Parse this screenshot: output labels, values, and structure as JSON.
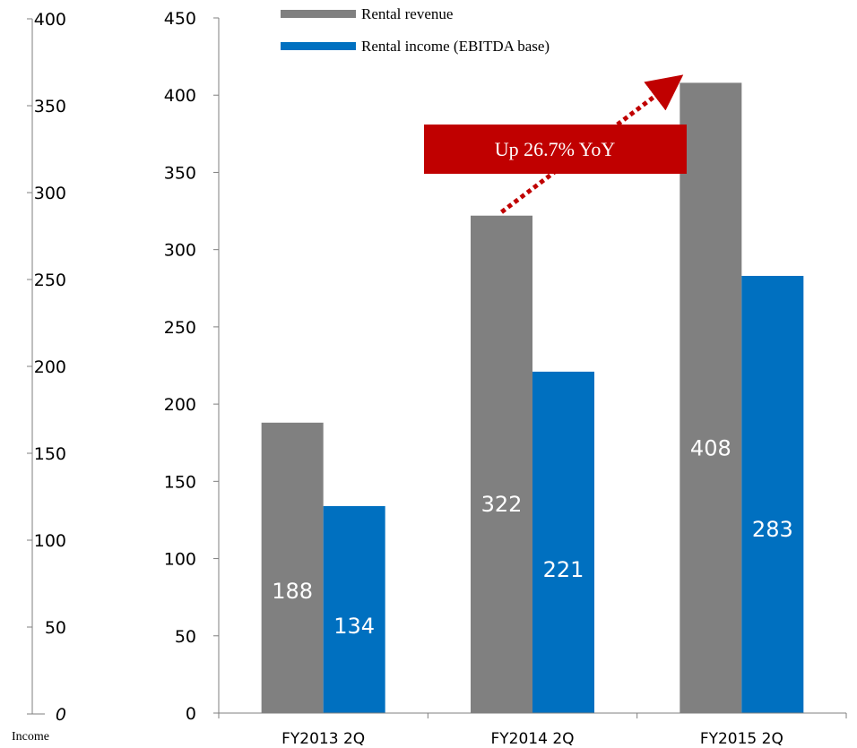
{
  "chart_data": {
    "type": "bar",
    "categories": [
      "FY2013 2Q",
      "FY2014 2Q",
      "FY2015 2Q"
    ],
    "series": [
      {
        "name": "Rental revenue",
        "values": [
          188,
          322,
          408
        ],
        "color": "#808080"
      },
      {
        "name": "Rental income (EBITDA base)",
        "values": [
          134,
          221,
          283
        ],
        "color": "#0070c0"
      }
    ],
    "ylim": [
      0,
      450
    ],
    "yticks": [
      0,
      50,
      100,
      150,
      200,
      250,
      300,
      350,
      400,
      450
    ],
    "secondary_axis": {
      "label": "Income",
      "ylim": [
        0,
        400
      ],
      "yticks": [
        0,
        50,
        100,
        150,
        200,
        250,
        300,
        350,
        400
      ]
    },
    "annotation": {
      "text": "Up 26.7% YoY",
      "color": "#c00000",
      "from": {
        "category": "FY2014 2Q",
        "series": "Rental revenue"
      },
      "to": {
        "category": "FY2015 2Q",
        "series": "Rental revenue"
      }
    },
    "legend_position": "top",
    "grid": false
  }
}
